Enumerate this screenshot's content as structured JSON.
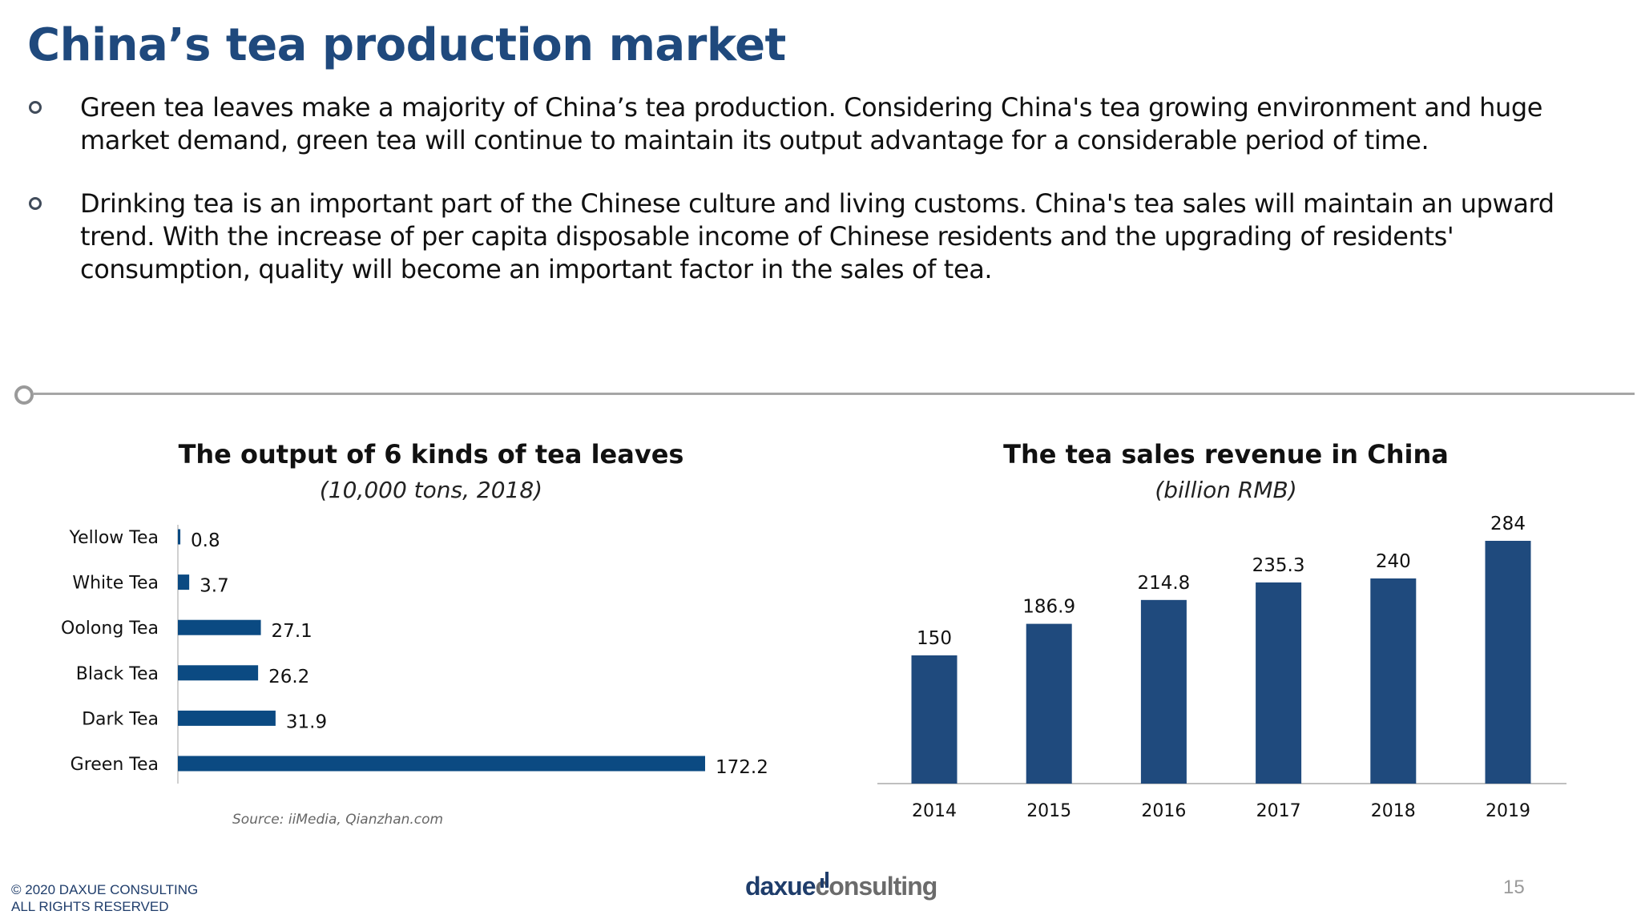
{
  "title": "China’s tea production market",
  "bullets": [
    "Green tea leaves make a majority of China’s tea production. Considering China's tea growing environment and huge market demand, green tea will continue to maintain its output advantage for a considerable period of time.",
    "Drinking tea is an important part of the Chinese culture and living customs. China's tea sales will maintain an upward trend. With the increase of per capita disposable income of Chinese residents and the upgrading of residents' consumption, quality will become an important factor in the sales of tea."
  ],
  "chart_data": [
    {
      "type": "bar",
      "orientation": "horizontal",
      "title": "The output of 6 kinds of tea leaves",
      "subtitle": "(10,000 tons, 2018)",
      "categories": [
        "Yellow Tea",
        "White Tea",
        "Oolong Tea",
        "Black Tea",
        "Dark Tea",
        "Green Tea"
      ],
      "values": [
        0.8,
        3.7,
        27.1,
        26.2,
        31.9,
        172.2
      ],
      "value_labels": [
        "0.8",
        "3.7",
        "27.1",
        "26.2",
        "31.9",
        "172.2"
      ],
      "xlim": [
        0,
        172.2
      ],
      "grid": false,
      "color": "#0b4a82"
    },
    {
      "type": "bar",
      "orientation": "vertical",
      "title": "The tea sales revenue in China",
      "subtitle": "(billion RMB)",
      "categories": [
        "2014",
        "2015",
        "2016",
        "2017",
        "2018",
        "2019"
      ],
      "values": [
        150,
        186.9,
        214.8,
        235.3,
        240,
        284
      ],
      "value_labels": [
        "150",
        "186.9",
        "214.8",
        "235.3",
        "240",
        "284"
      ],
      "ylim": [
        0,
        284
      ],
      "grid": false,
      "color": "#1f4a7d"
    }
  ],
  "source": "Source: iiMedia, Qianzhan.com",
  "footer": {
    "copyright_line1": "© 2020 DAXUE CONSULTING",
    "copyright_line2": "ALL RIGHTS RESERVED",
    "logo_part1": "daxue",
    "logo_part2": "consulting",
    "page_number": "15"
  },
  "colors": {
    "title": "#1f497d",
    "bar_left": "#0b4a82",
    "bar_right": "#1f4a7d",
    "divider": "#a6a6a6"
  }
}
